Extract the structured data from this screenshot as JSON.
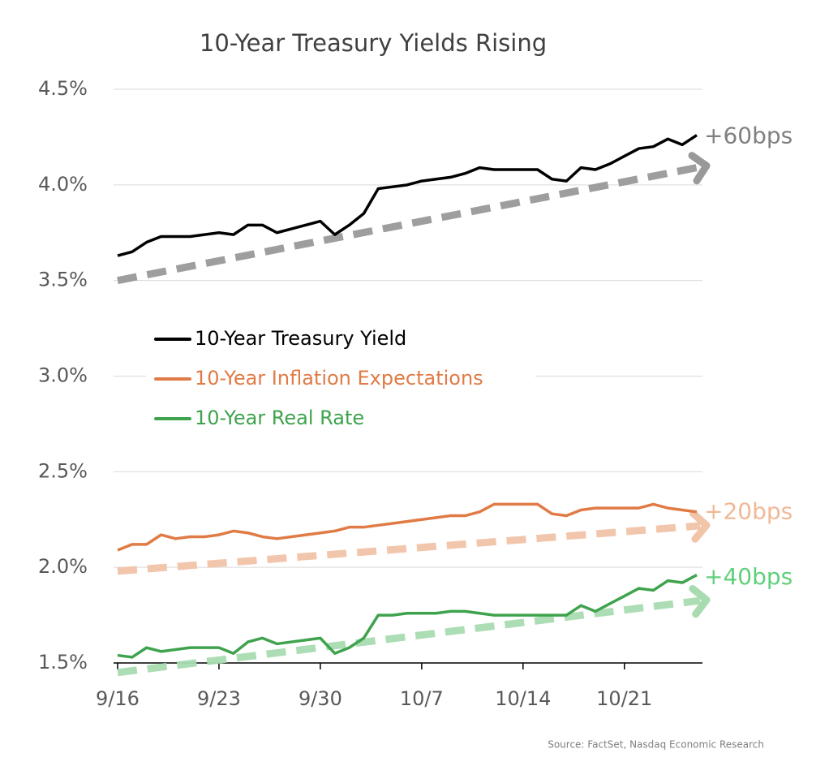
{
  "chart_data": {
    "type": "line",
    "title": "10-Year Treasury Yields Rising",
    "source": "Source: FactSet, Nasdaq Economic Research",
    "categories": [
      "9/16",
      null,
      null,
      null,
      null,
      null,
      null,
      "9/23",
      null,
      null,
      null,
      null,
      null,
      null,
      "9/30",
      null,
      null,
      null,
      null,
      null,
      null,
      "10/7",
      null,
      null,
      null,
      null,
      null,
      null,
      "10/14",
      null,
      null,
      null,
      null,
      null,
      null,
      "10/21",
      null,
      null,
      null,
      null,
      null
    ],
    "ylim": [
      1.5,
      4.5
    ],
    "yticks": [
      {
        "value": 1.5,
        "label": "1.5%"
      },
      {
        "value": 2.0,
        "label": "2.0%"
      },
      {
        "value": 2.5,
        "label": "2.5%"
      },
      {
        "value": 3.0,
        "label": "3.0%"
      },
      {
        "value": 3.5,
        "label": "3.5%"
      },
      {
        "value": 4.0,
        "label": "4.0%"
      },
      {
        "value": 4.5,
        "label": "4.5%"
      }
    ],
    "grid": true,
    "legend": "center left",
    "series": [
      {
        "name": "10-Year Treasury Yield",
        "color": "#000000",
        "values": [
          3.63,
          3.65,
          3.7,
          3.73,
          3.73,
          3.73,
          3.74,
          3.75,
          3.74,
          3.79,
          3.79,
          3.75,
          3.77,
          3.79,
          3.81,
          3.74,
          3.79,
          3.85,
          3.98,
          3.99,
          4.0,
          4.02,
          4.03,
          4.04,
          4.06,
          4.09,
          4.08,
          4.08,
          4.08,
          4.08,
          4.03,
          4.02,
          4.09,
          4.08,
          4.11,
          4.15,
          4.19,
          4.2,
          4.24,
          4.21,
          4.26
        ]
      },
      {
        "name": "10-Year Inflation Expectations",
        "color": "#e07b45",
        "values": [
          2.09,
          2.12,
          2.12,
          2.17,
          2.15,
          2.16,
          2.16,
          2.17,
          2.19,
          2.18,
          2.16,
          2.15,
          2.16,
          2.17,
          2.18,
          2.19,
          2.21,
          2.21,
          2.22,
          2.23,
          2.24,
          2.25,
          2.26,
          2.27,
          2.27,
          2.29,
          2.33,
          2.33,
          2.33,
          2.33,
          2.28,
          2.27,
          2.3,
          2.31,
          2.31,
          2.31,
          2.31,
          2.33,
          2.31,
          2.3,
          2.29
        ]
      },
      {
        "name": "10-Year Real Rate",
        "color": "#3fa34d",
        "values": [
          1.54,
          1.53,
          1.58,
          1.56,
          1.57,
          1.58,
          1.58,
          1.58,
          1.55,
          1.61,
          1.63,
          1.6,
          1.61,
          1.62,
          1.63,
          1.55,
          1.58,
          1.63,
          1.75,
          1.75,
          1.76,
          1.76,
          1.76,
          1.77,
          1.77,
          1.76,
          1.75,
          1.75,
          1.75,
          1.75,
          1.75,
          1.75,
          1.8,
          1.77,
          1.81,
          1.85,
          1.89,
          1.88,
          1.93,
          1.92,
          1.96
        ]
      }
    ],
    "trends": [
      {
        "label": "+60bps",
        "color": "#999999",
        "label_color": "#808080",
        "start": 3.5,
        "end": 4.1
      },
      {
        "label": "+20bps",
        "color": "#f2c4a8",
        "label_color": "#f0b896",
        "start": 1.98,
        "end": 2.22
      },
      {
        "label": "+40bps",
        "color": "#a8dcb0",
        "label_color": "#5fd07a",
        "start": 1.45,
        "end": 1.83
      }
    ]
  }
}
